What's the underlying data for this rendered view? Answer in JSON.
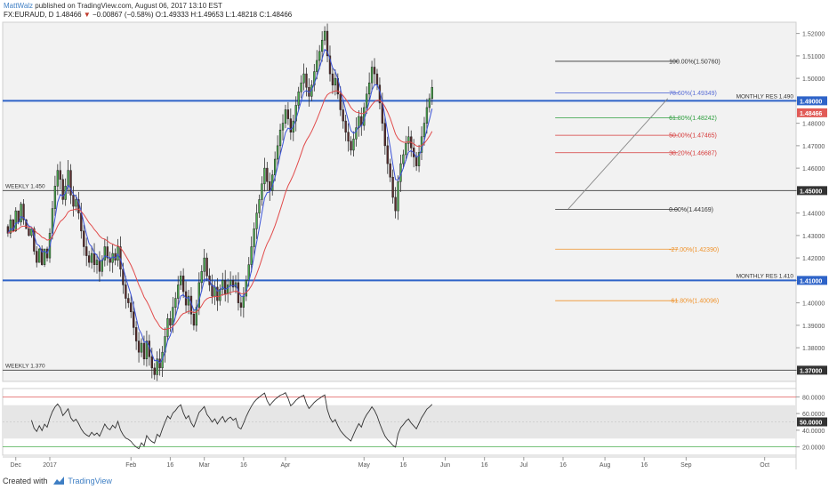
{
  "header": {
    "author": "MattWalz",
    "published": "published on TradingView.com, August 06, 2017 13:10 EST",
    "symbol": "FX:EURAUD, D",
    "last": "1.48466",
    "change": "−0.00867 (−0.58%)",
    "ohlc": {
      "o": "O:1.49333",
      "h": "H:1.49653",
      "l": "L:1.48218",
      "c": "C:1.48466"
    }
  },
  "footer": {
    "created_with": "Created with",
    "brand": "TradingView"
  },
  "chart_data": [
    {
      "type": "candlestick",
      "title": "FX:EURAUD, D",
      "ylim": [
        1.365,
        1.525
      ],
      "y_ticks": [
        "1.52000",
        "1.51000",
        "1.50000",
        "1.49000",
        "1.48000",
        "1.47000",
        "1.46000",
        "1.45000",
        "1.44000",
        "1.43000",
        "1.42000",
        "1.41000",
        "1.40000",
        "1.39000",
        "1.38000",
        "1.37000"
      ],
      "x_ticks": [
        "Dec",
        "2017",
        "Feb",
        "16",
        "Mar",
        "16",
        "Apr",
        "May",
        "16",
        "Jun",
        "16",
        "Jul",
        "16",
        "Aug",
        "16",
        "Sep",
        "Oct"
      ],
      "x_tick_days": [
        -13,
        0,
        31,
        46,
        59,
        74,
        90,
        120,
        135,
        151,
        166,
        181,
        196,
        212,
        227,
        243,
        273
      ],
      "x_range_days": [
        -18,
        285
      ],
      "price_tags": [
        {
          "label": "1.49000",
          "value": 1.49,
          "color": "#2e63c8"
        },
        {
          "label": "1.48466",
          "value": 1.48466,
          "color": "#e15b57"
        },
        {
          "label": "1.45000",
          "value": 1.45,
          "color": "#333333"
        },
        {
          "label": "1.41000",
          "value": 1.41,
          "color": "#2e63c8"
        },
        {
          "label": "1.37000",
          "value": 1.37,
          "color": "#333333"
        }
      ],
      "horizontal_levels": [
        {
          "label": "MONTHLY RES 1.490",
          "value": 1.49,
          "color": "#2e63c8"
        },
        {
          "label": "WEEKLY 1.450",
          "value": 1.45,
          "color": "#555555"
        },
        {
          "label": "MONTHLY RES 1.410",
          "value": 1.41,
          "color": "#2e63c8"
        },
        {
          "label": "WEEKLY 1.370",
          "value": 1.37,
          "color": "#555555"
        }
      ],
      "fibonacci": {
        "start_day": 193,
        "end_day": 240,
        "levels": [
          {
            "label": "100.00%(1.50760)",
            "value": 1.5076,
            "color": "#333333"
          },
          {
            "label": "78.60%(1.49349)",
            "value": 1.49349,
            "color": "#5b6fd6"
          },
          {
            "label": "61.80%(1.48242)",
            "value": 1.48242,
            "color": "#2e9e3e"
          },
          {
            "label": "50.00%(1.47465)",
            "value": 1.47465,
            "color": "#d63a3a"
          },
          {
            "label": "38.20%(1.46687)",
            "value": 1.46687,
            "color": "#d63a3a"
          },
          {
            "label": "0.00%(1.44169)",
            "value": 1.44169,
            "color": "#333333"
          },
          {
            "label": "-27.00%(1.42390)",
            "value": 1.4239,
            "color": "#f0932b"
          },
          {
            "label": "-61.80%(1.40096)",
            "value": 1.40096,
            "color": "#f0932b"
          }
        ]
      },
      "trendline": [
        [
          198,
          1.4418
        ],
        [
          236,
          1.491
        ]
      ],
      "candles": [
        [
          -16,
          1.434,
          1.431
        ],
        [
          -15,
          1.431,
          1.437
        ],
        [
          -14,
          1.437,
          1.432
        ],
        [
          -13,
          1.432,
          1.441
        ],
        [
          -12,
          1.441,
          1.436
        ],
        [
          -11,
          1.436,
          1.444
        ],
        [
          -10,
          1.444,
          1.437
        ],
        [
          -9,
          1.437,
          1.433
        ],
        [
          -8,
          1.433,
          1.43
        ],
        [
          -7,
          1.43,
          1.433
        ],
        [
          -6,
          1.433,
          1.423
        ],
        [
          -5,
          1.423,
          1.418
        ],
        [
          -4,
          1.418,
          1.424
        ],
        [
          -3,
          1.424,
          1.417
        ],
        [
          -2,
          1.417,
          1.424
        ],
        [
          -1,
          1.424,
          1.42
        ],
        [
          0,
          1.42,
          1.431
        ],
        [
          1,
          1.431,
          1.442
        ],
        [
          2,
          1.442,
          1.452
        ],
        [
          3,
          1.452,
          1.459
        ],
        [
          4,
          1.459,
          1.455
        ],
        [
          5,
          1.455,
          1.446
        ],
        [
          6,
          1.446,
          1.452
        ],
        [
          7,
          1.452,
          1.459
        ],
        [
          8,
          1.459,
          1.448
        ],
        [
          9,
          1.448,
          1.443
        ],
        [
          10,
          1.443,
          1.446
        ],
        [
          11,
          1.446,
          1.44
        ],
        [
          12,
          1.44,
          1.432
        ],
        [
          13,
          1.432,
          1.425
        ],
        [
          14,
          1.425,
          1.421
        ],
        [
          15,
          1.421,
          1.418
        ],
        [
          16,
          1.418,
          1.422
        ],
        [
          17,
          1.422,
          1.417
        ],
        [
          18,
          1.417,
          1.419
        ],
        [
          19,
          1.419,
          1.414
        ],
        [
          20,
          1.414,
          1.419
        ],
        [
          21,
          1.419,
          1.425
        ],
        [
          22,
          1.425,
          1.42
        ],
        [
          23,
          1.42,
          1.418
        ],
        [
          24,
          1.418,
          1.422
        ],
        [
          25,
          1.422,
          1.419
        ],
        [
          26,
          1.419,
          1.425
        ],
        [
          27,
          1.425,
          1.415
        ],
        [
          28,
          1.415,
          1.408
        ],
        [
          29,
          1.408,
          1.402
        ],
        [
          30,
          1.402,
          1.4
        ],
        [
          31,
          1.4,
          1.396
        ],
        [
          32,
          1.396,
          1.389
        ],
        [
          33,
          1.389,
          1.383
        ],
        [
          34,
          1.383,
          1.378
        ],
        [
          35,
          1.378,
          1.382
        ],
        [
          36,
          1.382,
          1.375
        ],
        [
          37,
          1.375,
          1.383
        ],
        [
          38,
          1.383,
          1.376
        ],
        [
          39,
          1.376,
          1.371
        ],
        [
          40,
          1.371,
          1.368
        ],
        [
          41,
          1.368,
          1.375
        ],
        [
          42,
          1.375,
          1.371
        ],
        [
          43,
          1.371,
          1.378
        ],
        [
          44,
          1.378,
          1.385
        ],
        [
          45,
          1.385,
          1.393
        ],
        [
          46,
          1.393,
          1.39
        ],
        [
          47,
          1.39,
          1.398
        ],
        [
          48,
          1.398,
          1.402
        ],
        [
          49,
          1.402,
          1.408
        ],
        [
          50,
          1.408,
          1.412
        ],
        [
          51,
          1.412,
          1.405
        ],
        [
          52,
          1.405,
          1.399
        ],
        [
          53,
          1.399,
          1.403
        ],
        [
          54,
          1.403,
          1.395
        ],
        [
          55,
          1.395,
          1.39
        ],
        [
          56,
          1.39,
          1.398
        ],
        [
          57,
          1.398,
          1.409
        ],
        [
          58,
          1.409,
          1.414
        ],
        [
          59,
          1.414,
          1.42
        ],
        [
          60,
          1.42,
          1.412
        ],
        [
          61,
          1.412,
          1.408
        ],
        [
          62,
          1.408,
          1.403
        ],
        [
          63,
          1.403,
          1.407
        ],
        [
          64,
          1.407,
          1.401
        ],
        [
          65,
          1.401,
          1.406
        ],
        [
          66,
          1.406,
          1.41
        ],
        [
          67,
          1.41,
          1.404
        ],
        [
          68,
          1.404,
          1.408
        ],
        [
          69,
          1.408,
          1.41
        ],
        [
          70,
          1.41,
          1.407
        ],
        [
          71,
          1.407,
          1.409
        ],
        [
          72,
          1.409,
          1.4
        ],
        [
          73,
          1.4,
          1.398
        ],
        [
          74,
          1.398,
          1.403
        ],
        [
          75,
          1.403,
          1.41
        ],
        [
          76,
          1.41,
          1.417
        ],
        [
          77,
          1.417,
          1.425
        ],
        [
          78,
          1.425,
          1.433
        ],
        [
          79,
          1.433,
          1.44
        ],
        [
          80,
          1.44,
          1.446
        ],
        [
          81,
          1.446,
          1.453
        ],
        [
          82,
          1.453,
          1.46
        ],
        [
          83,
          1.46,
          1.454
        ],
        [
          84,
          1.454,
          1.45
        ],
        [
          85,
          1.45,
          1.457
        ],
        [
          86,
          1.457,
          1.464
        ],
        [
          87,
          1.464,
          1.47
        ],
        [
          88,
          1.47,
          1.477
        ],
        [
          89,
          1.477,
          1.48
        ],
        [
          90,
          1.48,
          1.486
        ],
        [
          91,
          1.486,
          1.482
        ],
        [
          92,
          1.482,
          1.476
        ],
        [
          93,
          1.476,
          1.481
        ],
        [
          94,
          1.481,
          1.488
        ],
        [
          95,
          1.488,
          1.494
        ],
        [
          96,
          1.494,
          1.498
        ],
        [
          97,
          1.498,
          1.502
        ],
        [
          98,
          1.502,
          1.496
        ],
        [
          99,
          1.496,
          1.492
        ],
        [
          100,
          1.492,
          1.497
        ],
        [
          101,
          1.497,
          1.503
        ],
        [
          102,
          1.503,
          1.508
        ],
        [
          103,
          1.508,
          1.512
        ],
        [
          104,
          1.512,
          1.517
        ],
        [
          105,
          1.517,
          1.521
        ],
        [
          106,
          1.521,
          1.51
        ],
        [
          107,
          1.51,
          1.502
        ],
        [
          108,
          1.502,
          1.497
        ],
        [
          109,
          1.497,
          1.5
        ],
        [
          110,
          1.5,
          1.493
        ],
        [
          111,
          1.493,
          1.486
        ],
        [
          112,
          1.486,
          1.481
        ],
        [
          113,
          1.481,
          1.476
        ],
        [
          114,
          1.476,
          1.472
        ],
        [
          115,
          1.472,
          1.468
        ],
        [
          116,
          1.468,
          1.473
        ],
        [
          117,
          1.473,
          1.478
        ],
        [
          118,
          1.478,
          1.483
        ],
        [
          119,
          1.483,
          1.479
        ],
        [
          120,
          1.479,
          1.487
        ],
        [
          121,
          1.487,
          1.493
        ],
        [
          122,
          1.493,
          1.498
        ],
        [
          123,
          1.498,
          1.505
        ],
        [
          124,
          1.505,
          1.502
        ],
        [
          125,
          1.502,
          1.497
        ],
        [
          126,
          1.497,
          1.489
        ],
        [
          127,
          1.489,
          1.48
        ],
        [
          128,
          1.48,
          1.47
        ],
        [
          129,
          1.47,
          1.462
        ],
        [
          130,
          1.462,
          1.456
        ],
        [
          131,
          1.456,
          1.447
        ],
        [
          132,
          1.447,
          1.441
        ],
        [
          133,
          1.441,
          1.454
        ],
        [
          134,
          1.454,
          1.462
        ],
        [
          135,
          1.462,
          1.466
        ],
        [
          136,
          1.466,
          1.471
        ],
        [
          137,
          1.471,
          1.474
        ],
        [
          138,
          1.474,
          1.469
        ],
        [
          139,
          1.469,
          1.465
        ],
        [
          140,
          1.465,
          1.461
        ],
        [
          141,
          1.461,
          1.467
        ],
        [
          142,
          1.467,
          1.474
        ],
        [
          143,
          1.474,
          1.48
        ],
        [
          144,
          1.48,
          1.487
        ],
        [
          145,
          1.487,
          1.491
        ],
        [
          146,
          1.491,
          1.496
        ]
      ],
      "series": [
        {
          "name": "",
          "color": "#3a52d8",
          "values": []
        },
        {
          "name": "",
          "color": "#e14b4b",
          "values": []
        }
      ]
    },
    {
      "type": "line",
      "title": "",
      "ylim": [
        10,
        90
      ],
      "y_ticks": [
        "80.0000",
        "60.0000",
        "40.0000",
        "20.0000"
      ],
      "price_tag": {
        "label": "50.0000",
        "value": 50
      },
      "overbought": 80,
      "oversold": 20,
      "band": [
        30,
        70
      ],
      "series": [
        {
          "name": "",
          "color": "#333333",
          "values": []
        }
      ]
    }
  ]
}
